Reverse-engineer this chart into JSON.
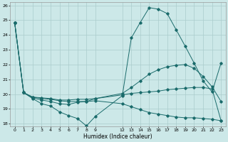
{
  "xlabel": "Humidex (Indice chaleur)",
  "background_color": "#cce8e8",
  "grid_color": "#aacccc",
  "line_color": "#1a6b6b",
  "xlim": [
    -0.5,
    23.5
  ],
  "ylim": [
    17.8,
    26.2
  ],
  "xtick_positions": [
    0,
    1,
    2,
    3,
    4,
    5,
    6,
    7,
    8,
    9,
    12,
    13,
    14,
    15,
    16,
    17,
    18,
    19,
    20,
    21,
    22,
    23
  ],
  "xtick_labels": [
    "0",
    "1",
    "2",
    "3",
    "4",
    "5",
    "6",
    "7",
    "8",
    "9",
    "12",
    "13",
    "14",
    "15",
    "16",
    "17",
    "18",
    "19",
    "20",
    "21",
    "22",
    "23"
  ],
  "yticks": [
    18,
    19,
    20,
    21,
    22,
    23,
    24,
    25,
    26
  ],
  "line1_x": [
    0,
    1,
    2,
    3,
    4,
    5,
    6,
    7,
    8,
    9,
    12,
    13,
    14,
    15,
    16,
    17,
    18,
    19,
    20,
    21,
    22,
    23
  ],
  "line1_y": [
    24.85,
    20.1,
    19.7,
    19.35,
    19.2,
    18.8,
    18.55,
    18.35,
    17.85,
    18.5,
    19.9,
    23.8,
    24.85,
    25.85,
    25.75,
    25.45,
    24.35,
    23.25,
    22.1,
    20.9,
    20.15,
    22.1
  ],
  "line2_x": [
    0,
    1,
    2,
    3,
    4,
    5,
    6,
    7,
    8,
    9,
    12,
    13,
    14,
    15,
    16,
    17,
    18,
    19,
    20,
    21,
    22,
    23
  ],
  "line2_y": [
    24.85,
    20.1,
    19.75,
    19.6,
    19.5,
    19.35,
    19.3,
    19.45,
    19.5,
    19.7,
    20.05,
    20.45,
    20.9,
    21.35,
    21.65,
    21.85,
    21.95,
    22.0,
    21.75,
    21.2,
    20.5,
    19.5
  ],
  "line3_x": [
    0,
    1,
    2,
    3,
    4,
    5,
    6,
    7,
    8,
    9,
    12,
    13,
    14,
    15,
    16,
    17,
    18,
    19,
    20,
    21,
    22,
    23
  ],
  "line3_y": [
    24.85,
    20.1,
    19.8,
    19.75,
    19.7,
    19.6,
    19.6,
    19.65,
    19.65,
    19.7,
    19.95,
    20.05,
    20.1,
    20.15,
    20.2,
    20.3,
    20.35,
    20.4,
    20.45,
    20.45,
    20.35,
    18.2
  ],
  "line4_x": [
    0,
    1,
    2,
    3,
    4,
    5,
    6,
    7,
    8,
    9,
    12,
    13,
    14,
    15,
    16,
    17,
    18,
    19,
    20,
    21,
    22,
    23
  ],
  "line4_y": [
    24.85,
    20.1,
    19.8,
    19.7,
    19.65,
    19.55,
    19.5,
    19.5,
    19.5,
    19.55,
    19.35,
    19.15,
    18.95,
    18.75,
    18.65,
    18.55,
    18.45,
    18.4,
    18.4,
    18.35,
    18.3,
    18.2
  ]
}
